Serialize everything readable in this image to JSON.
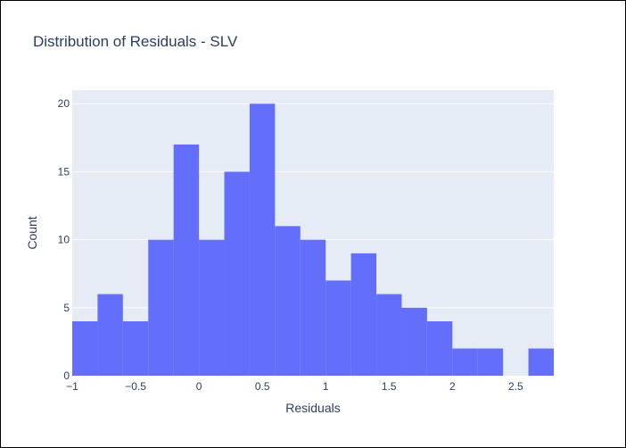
{
  "chart_data": {
    "type": "bar",
    "title": "Distribution of Residuals - SLV",
    "xlabel": "Residuals",
    "ylabel": "Count",
    "bin_size": 0.2,
    "bins": [
      {
        "start": -1.0,
        "end": -0.8,
        "count": 4
      },
      {
        "start": -0.8,
        "end": -0.6,
        "count": 6
      },
      {
        "start": -0.6,
        "end": -0.4,
        "count": 4
      },
      {
        "start": -0.4,
        "end": -0.2,
        "count": 10
      },
      {
        "start": -0.2,
        "end": 0.0,
        "count": 17
      },
      {
        "start": 0.0,
        "end": 0.2,
        "count": 10
      },
      {
        "start": 0.2,
        "end": 0.4,
        "count": 15
      },
      {
        "start": 0.4,
        "end": 0.6,
        "count": 20
      },
      {
        "start": 0.6,
        "end": 0.8,
        "count": 11
      },
      {
        "start": 0.8,
        "end": 1.0,
        "count": 10
      },
      {
        "start": 1.0,
        "end": 1.2,
        "count": 7
      },
      {
        "start": 1.2,
        "end": 1.4,
        "count": 9
      },
      {
        "start": 1.4,
        "end": 1.6,
        "count": 6
      },
      {
        "start": 1.6,
        "end": 1.8,
        "count": 5
      },
      {
        "start": 1.8,
        "end": 2.0,
        "count": 4
      },
      {
        "start": 2.0,
        "end": 2.2,
        "count": 2
      },
      {
        "start": 2.2,
        "end": 2.4,
        "count": 2
      },
      {
        "start": 2.4,
        "end": 2.6,
        "count": 0
      },
      {
        "start": 2.6,
        "end": 2.8,
        "count": 2
      }
    ],
    "xlim": [
      -1.0,
      2.8
    ],
    "ylim": [
      0,
      21
    ],
    "xticks": [
      -1,
      -0.5,
      0,
      0.5,
      1,
      1.5,
      2,
      2.5
    ],
    "xtick_labels": [
      "−1",
      "−0.5",
      "0",
      "0.5",
      "1",
      "1.5",
      "2",
      "2.5"
    ],
    "yticks": [
      0,
      5,
      10,
      15,
      20
    ],
    "ytick_labels": [
      "0",
      "5",
      "10",
      "15",
      "20"
    ],
    "grid": true,
    "bar_color": "#636efa",
    "plot_bgcolor": "#e5ecf6",
    "grid_color": "#ffffff",
    "text_color": "#2a3f5f"
  }
}
